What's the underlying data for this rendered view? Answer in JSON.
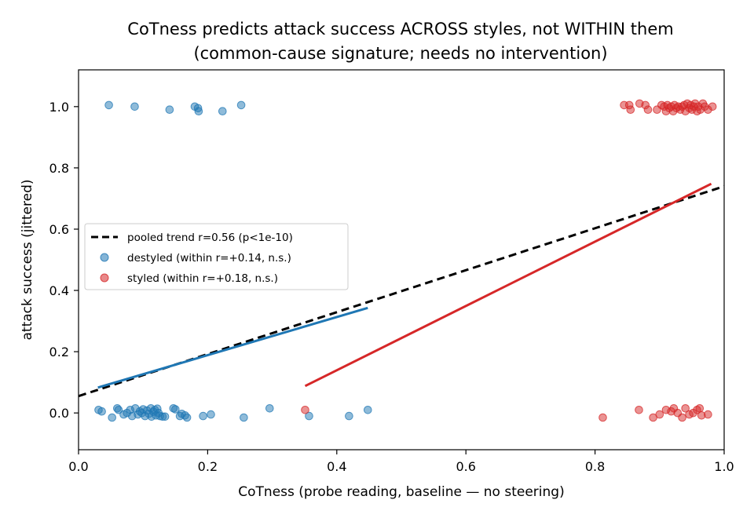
{
  "chart_data": {
    "type": "scatter",
    "title": "CoTness predicts attack success ACROSS styles, not WITHIN them",
    "subtitle": "(common-cause signature; needs no intervention)",
    "xlabel": "CoTness (probe reading, baseline — no steering)",
    "ylabel": "attack success (jittered)",
    "xlim": [
      0.0,
      1.0
    ],
    "ylim": [
      -0.12,
      1.12
    ],
    "xticks": [
      0.0,
      0.2,
      0.4,
      0.6,
      0.8,
      1.0
    ],
    "xtick_labels": [
      "0.0",
      "0.2",
      "0.4",
      "0.6",
      "0.8",
      "1.0"
    ],
    "yticks": [
      0.0,
      0.2,
      0.4,
      0.6,
      0.8,
      1.0
    ],
    "ytick_labels": [
      "0.0",
      "0.2",
      "0.4",
      "0.6",
      "0.8",
      "1.0"
    ],
    "grid": false,
    "legend_position": "center-left",
    "series": [
      {
        "name": "destyled  (within r=+0.14, n.s.)",
        "kind": "scatter",
        "color": "#1f77b4",
        "points": [
          [
            0.047,
            1.005
          ],
          [
            0.087,
            1.0
          ],
          [
            0.141,
            0.99
          ],
          [
            0.18,
            1.0
          ],
          [
            0.185,
            0.995
          ],
          [
            0.186,
            0.985
          ],
          [
            0.223,
            0.985
          ],
          [
            0.252,
            1.005
          ],
          [
            0.031,
            0.01
          ],
          [
            0.036,
            0.005
          ],
          [
            0.052,
            -0.015
          ],
          [
            0.06,
            0.015
          ],
          [
            0.062,
            0.01
          ],
          [
            0.07,
            -0.005
          ],
          [
            0.075,
            0.0
          ],
          [
            0.08,
            0.01
          ],
          [
            0.083,
            -0.01
          ],
          [
            0.088,
            0.015
          ],
          [
            0.092,
            -0.005
          ],
          [
            0.095,
            0.005
          ],
          [
            0.098,
            0.0
          ],
          [
            0.1,
            0.012
          ],
          [
            0.103,
            -0.01
          ],
          [
            0.106,
            0.008
          ],
          [
            0.109,
            -0.003
          ],
          [
            0.112,
            0.015
          ],
          [
            0.113,
            -0.012
          ],
          [
            0.116,
            0.004
          ],
          [
            0.118,
            0.01
          ],
          [
            0.12,
            -0.008
          ],
          [
            0.122,
            0.014
          ],
          [
            0.124,
            0.0
          ],
          [
            0.126,
            -0.01
          ],
          [
            0.13,
            -0.012
          ],
          [
            0.134,
            -0.012
          ],
          [
            0.147,
            0.015
          ],
          [
            0.15,
            0.012
          ],
          [
            0.157,
            -0.01
          ],
          [
            0.16,
            -0.003
          ],
          [
            0.165,
            -0.008
          ],
          [
            0.168,
            -0.015
          ],
          [
            0.193,
            -0.01
          ],
          [
            0.205,
            -0.005
          ],
          [
            0.256,
            -0.015
          ],
          [
            0.296,
            0.015
          ],
          [
            0.357,
            -0.01
          ],
          [
            0.419,
            -0.01
          ],
          [
            0.448,
            0.01
          ]
        ]
      },
      {
        "name": "styled  (within r=+0.18, n.s.)",
        "kind": "scatter",
        "color": "#d62728",
        "points": [
          [
            0.845,
            1.005
          ],
          [
            0.853,
            1.005
          ],
          [
            0.855,
            0.99
          ],
          [
            0.869,
            1.01
          ],
          [
            0.878,
            1.005
          ],
          [
            0.882,
            0.99
          ],
          [
            0.896,
            0.99
          ],
          [
            0.903,
            1.005
          ],
          [
            0.907,
            1.0
          ],
          [
            0.91,
            0.985
          ],
          [
            0.912,
            1.005
          ],
          [
            0.915,
            0.995
          ],
          [
            0.918,
            1.0
          ],
          [
            0.921,
            0.985
          ],
          [
            0.923,
            1.005
          ],
          [
            0.926,
            0.995
          ],
          [
            0.929,
            1.0
          ],
          [
            0.932,
            0.99
          ],
          [
            0.935,
            1.0
          ],
          [
            0.938,
            1.005
          ],
          [
            0.94,
            0.985
          ],
          [
            0.943,
            1.01
          ],
          [
            0.946,
            0.995
          ],
          [
            0.948,
            1.005
          ],
          [
            0.95,
            0.99
          ],
          [
            0.953,
            1.0
          ],
          [
            0.955,
            1.01
          ],
          [
            0.958,
            0.985
          ],
          [
            0.96,
            1.0
          ],
          [
            0.963,
            0.99
          ],
          [
            0.967,
            1.01
          ],
          [
            0.97,
            1.0
          ],
          [
            0.975,
            0.99
          ],
          [
            0.982,
            1.0
          ],
          [
            0.351,
            0.01
          ],
          [
            0.812,
            -0.015
          ],
          [
            0.868,
            0.01
          ],
          [
            0.89,
            -0.015
          ],
          [
            0.9,
            -0.005
          ],
          [
            0.91,
            0.01
          ],
          [
            0.918,
            0.005
          ],
          [
            0.922,
            0.015
          ],
          [
            0.928,
            0.0
          ],
          [
            0.935,
            -0.015
          ],
          [
            0.94,
            0.015
          ],
          [
            0.946,
            -0.005
          ],
          [
            0.952,
            0.0
          ],
          [
            0.958,
            0.01
          ],
          [
            0.962,
            0.015
          ],
          [
            0.965,
            -0.008
          ],
          [
            0.975,
            -0.005
          ]
        ]
      }
    ],
    "lines": [
      {
        "name": "pooled trend  r=0.56 (p<1e-10)",
        "style": "dashed",
        "color": "#000000",
        "x": [
          0.0,
          1.0
        ],
        "y": [
          0.055,
          0.74
        ]
      },
      {
        "name": "destyled fit",
        "style": "solid",
        "color": "#1f77b4",
        "x": [
          0.03,
          0.448
        ],
        "y": [
          0.083,
          0.343
        ]
      },
      {
        "name": "styled fit",
        "style": "solid",
        "color": "#d62728",
        "x": [
          0.351,
          0.98
        ],
        "y": [
          0.088,
          0.748
        ]
      }
    ],
    "legend": [
      {
        "label": "pooled trend  r=0.56 (p<1e-10)",
        "marker": "dashed-line",
        "color": "#000000"
      },
      {
        "label": "destyled  (within r=+0.14, n.s.)",
        "marker": "dot",
        "color": "#1f77b4"
      },
      {
        "label": "styled  (within r=+0.18, n.s.)",
        "marker": "dot",
        "color": "#d62728"
      }
    ]
  }
}
